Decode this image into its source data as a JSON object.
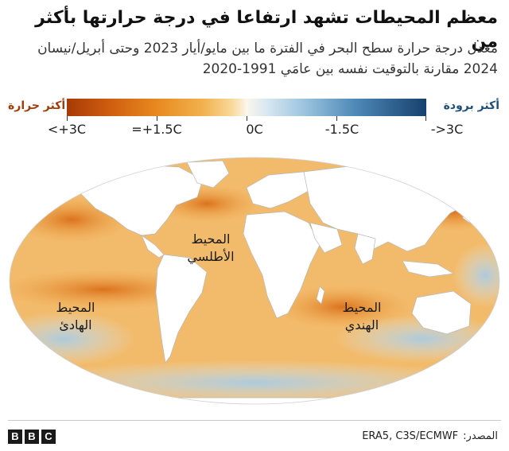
{
  "title": "معظم المحيطات تشهد ارتفاعا في درجة حرارتها بأكثر من",
  "subtitle": "معدل درجة حرارة سطح البحر في الفترة ما بين مايو/أيار 2023 وحتى أبريل/نيسان 2024 مقارنة بالتوقيت نفسه بين عامَي 1991-2020",
  "legend": {
    "warmer_label": "أكثر حرارة",
    "colder_label": "أكثر برودة",
    "ticks": [
      "<+3C",
      "=+1.5C",
      "0C",
      "-1.5C",
      "->3C"
    ],
    "colors": {
      "hot": "#a73a05",
      "warm": "#e8891f",
      "neutral": "#fbf6ea",
      "cool": "#9cc4df",
      "cold": "#17406d"
    }
  },
  "map": {
    "labels": {
      "atlantic": "المحيط الأطلسي",
      "pacific": "المحيط الهادئ",
      "indian": "المحيط الهندي"
    }
  },
  "footer": {
    "logo": [
      "B",
      "B",
      "C"
    ],
    "source_label": "المصدر:",
    "source_value": "ERA5, C3S/ECMWF"
  }
}
